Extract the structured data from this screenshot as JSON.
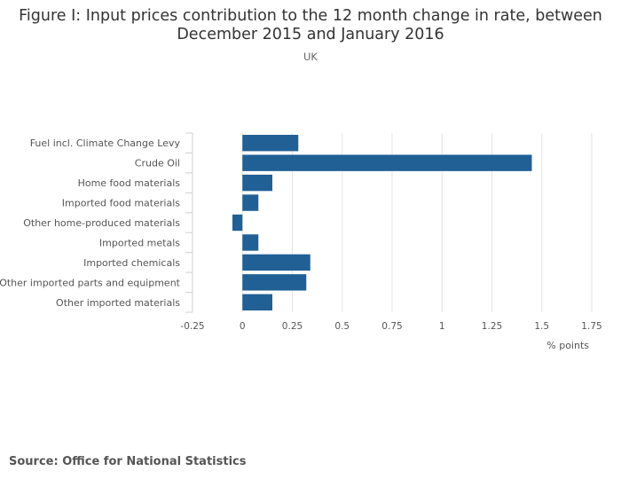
{
  "chart_data": {
    "type": "bar",
    "orientation": "horizontal",
    "title": "Figure I: Input prices contribution to the 12 month change in rate, between December 2015 and January 2016",
    "subtitle": "UK",
    "categories": [
      "Fuel incl. Climate Change Levy",
      "Crude Oil",
      "Home food materials",
      "Imported food materials",
      "Other home-produced materials",
      "Imported metals",
      "Imported chemicals",
      "Other imported parts and equipment",
      "Other imported materials"
    ],
    "values": [
      0.28,
      1.45,
      0.15,
      0.08,
      -0.05,
      0.08,
      0.34,
      0.32,
      0.15
    ],
    "xlabel": "% points",
    "ylabel": "",
    "xlim": [
      -0.25,
      1.75
    ],
    "xticks": [
      -0.25,
      0,
      0.25,
      0.5,
      0.75,
      1,
      1.25,
      1.5,
      1.75
    ],
    "xtick_labels": [
      "-0.25",
      "0",
      "0.25",
      "0.5",
      "0.75",
      "1",
      "1.25",
      "1.5",
      "1.75"
    ],
    "grid": true,
    "bar_color": "#206095"
  },
  "source": "Source: Office for National Statistics"
}
